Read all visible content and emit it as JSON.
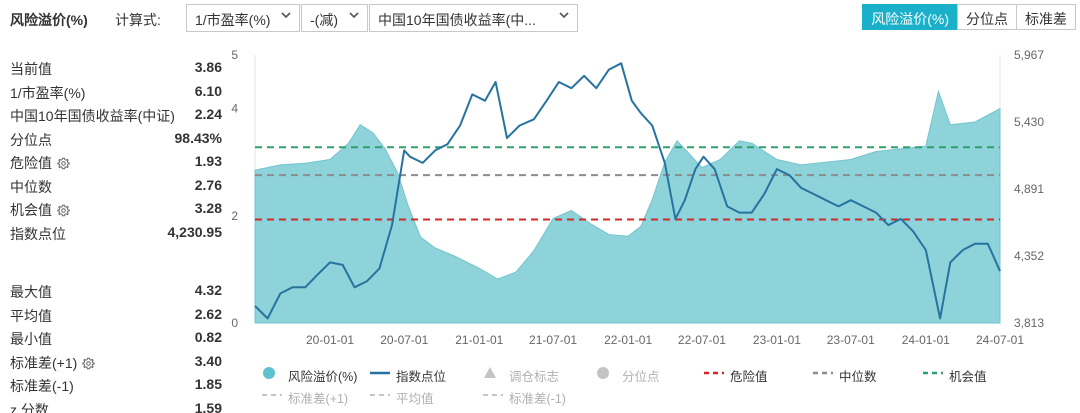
{
  "toolbar": {
    "title": "风险溢价(%)",
    "calc_label": "计算式:",
    "select1": "1/市盈率(%)",
    "select2": "-(减)",
    "select3": "中国10年国债收益率(中...",
    "tabs": [
      "风险溢价(%)",
      "分位点",
      "标准差"
    ],
    "active_tab": 0
  },
  "stats_top": [
    {
      "label": "当前值",
      "value": "3.86",
      "gear": false
    },
    {
      "label": "1/市盈率(%)",
      "value": "6.10",
      "gear": false
    },
    {
      "label": "中国10年国债收益率(中证)",
      "value": "2.24",
      "gear": false
    },
    {
      "label": "分位点",
      "value": "98.43%",
      "gear": false
    },
    {
      "label": "危险值",
      "value": "1.93",
      "gear": true
    },
    {
      "label": "中位数",
      "value": "2.76",
      "gear": false
    },
    {
      "label": "机会值",
      "value": "3.28",
      "gear": true
    },
    {
      "label": "指数点位",
      "value": "4,230.95",
      "gear": false
    }
  ],
  "stats_bottom": [
    {
      "label": "最大值",
      "value": "4.32",
      "gear": false
    },
    {
      "label": "平均值",
      "value": "2.62",
      "gear": false
    },
    {
      "label": "最小值",
      "value": "0.82",
      "gear": false
    },
    {
      "label": "标准差(+1)",
      "value": "3.40",
      "gear": true
    },
    {
      "label": "标准差(-1)",
      "value": "1.85",
      "gear": false
    },
    {
      "label": "z 分数",
      "value": "1.59",
      "gear": false
    }
  ],
  "legend": {
    "row1": [
      "风险溢价(%)",
      "指数点位",
      "调仓标志",
      "分位点",
      "危险值",
      "中位数",
      "机会值"
    ],
    "row2": [
      "标准差(+1)",
      "平均值",
      "标准差(-1)"
    ]
  },
  "colors": {
    "accent": "#1ab0c9",
    "area": "#8fd3da",
    "index_line": "#2673a0",
    "danger": "#d62728",
    "median": "#8c8c8c",
    "opportunity": "#2ca36c"
  },
  "chart_data": {
    "type": "area",
    "x_ticks": [
      "20-01-01",
      "20-07-01",
      "21-01-01",
      "21-07-01",
      "22-01-01",
      "22-07-01",
      "23-01-01",
      "23-07-01",
      "24-01-01",
      "24-07-01"
    ],
    "y_left_ticks": [
      "0",
      "2",
      "4",
      "5"
    ],
    "y_left_lim": [
      0,
      5
    ],
    "y_right_ticks": [
      "3,813",
      "4,352",
      "4,891",
      "5,430",
      "5,967"
    ],
    "y_right_lim": [
      3813,
      5967
    ],
    "reference_lines": {
      "danger": 1.93,
      "median": 2.76,
      "opportunity": 3.28
    },
    "series": [
      {
        "name": "风险溢价(%)",
        "kind": "area",
        "axis": "left",
        "x": [
          "2019-07-01",
          "2019-09-01",
          "2019-11-01",
          "2020-01-01",
          "2020-02-15",
          "2020-03-15",
          "2020-04-15",
          "2020-05-15",
          "2020-06-15",
          "2020-07-10",
          "2020-08-10",
          "2020-09-15",
          "2020-11-01",
          "2021-01-01",
          "2021-02-15",
          "2021-04-01",
          "2021-05-15",
          "2021-07-01",
          "2021-08-15",
          "2021-10-01",
          "2021-11-15",
          "2022-01-01",
          "2022-02-01",
          "2022-03-01",
          "2022-04-01",
          "2022-05-01",
          "2022-06-01",
          "2022-07-01",
          "2022-08-15",
          "2022-10-01",
          "2022-11-01",
          "2023-01-01",
          "2023-03-01",
          "2023-05-01",
          "2023-07-01",
          "2023-09-01",
          "2023-11-01",
          "2024-01-01",
          "2024-02-01",
          "2024-03-01",
          "2024-05-01",
          "2024-07-01"
        ],
        "y": [
          2.85,
          2.95,
          2.98,
          3.05,
          3.35,
          3.7,
          3.55,
          3.25,
          2.8,
          2.2,
          1.6,
          1.4,
          1.25,
          1.02,
          0.82,
          0.95,
          1.35,
          1.95,
          2.1,
          1.85,
          1.65,
          1.62,
          1.8,
          2.3,
          3.0,
          3.4,
          3.15,
          2.9,
          3.05,
          3.4,
          3.35,
          3.05,
          2.95,
          3.0,
          3.05,
          3.2,
          3.25,
          3.3,
          4.32,
          3.7,
          3.75,
          4.0
        ]
      },
      {
        "name": "指数点位",
        "kind": "line",
        "axis": "right",
        "x": [
          "2019-07-01",
          "2019-08-01",
          "2019-09-01",
          "2019-10-01",
          "2019-11-01",
          "2019-12-01",
          "2020-01-01",
          "2020-02-01",
          "2020-03-01",
          "2020-04-01",
          "2020-05-01",
          "2020-06-01",
          "2020-07-01",
          "2020-07-15",
          "2020-08-15",
          "2020-09-15",
          "2020-10-15",
          "2020-11-15",
          "2020-12-15",
          "2021-01-15",
          "2021-02-10",
          "2021-03-10",
          "2021-04-10",
          "2021-05-15",
          "2021-06-15",
          "2021-07-15",
          "2021-08-15",
          "2021-09-15",
          "2021-10-15",
          "2021-11-15",
          "2021-12-15",
          "2022-01-10",
          "2022-02-01",
          "2022-03-01",
          "2022-04-01",
          "2022-04-27",
          "2022-05-20",
          "2022-06-15",
          "2022-07-05",
          "2022-08-01",
          "2022-09-01",
          "2022-10-01",
          "2022-10-31",
          "2022-12-01",
          "2023-01-01",
          "2023-02-01",
          "2023-03-01",
          "2023-04-01",
          "2023-05-01",
          "2023-06-01",
          "2023-07-01",
          "2023-08-01",
          "2023-09-01",
          "2023-10-01",
          "2023-11-01",
          "2023-12-01",
          "2024-01-01",
          "2024-02-05",
          "2024-03-01",
          "2024-04-01",
          "2024-05-01",
          "2024-06-01",
          "2024-07-01"
        ],
        "y": [
          3950,
          3850,
          4050,
          4100,
          4100,
          4200,
          4300,
          4280,
          4100,
          4150,
          4250,
          4600,
          5200,
          5150,
          5100,
          5200,
          5250,
          5400,
          5650,
          5600,
          5750,
          5300,
          5400,
          5450,
          5600,
          5750,
          5700,
          5800,
          5700,
          5850,
          5900,
          5600,
          5500,
          5400,
          5100,
          4650,
          4800,
          5050,
          5150,
          5050,
          4750,
          4700,
          4700,
          4850,
          5050,
          5000,
          4900,
          4850,
          4800,
          4750,
          4800,
          4750,
          4700,
          4600,
          4650,
          4550,
          4400,
          3850,
          4300,
          4400,
          4450,
          4450,
          4230
        ]
      }
    ]
  }
}
